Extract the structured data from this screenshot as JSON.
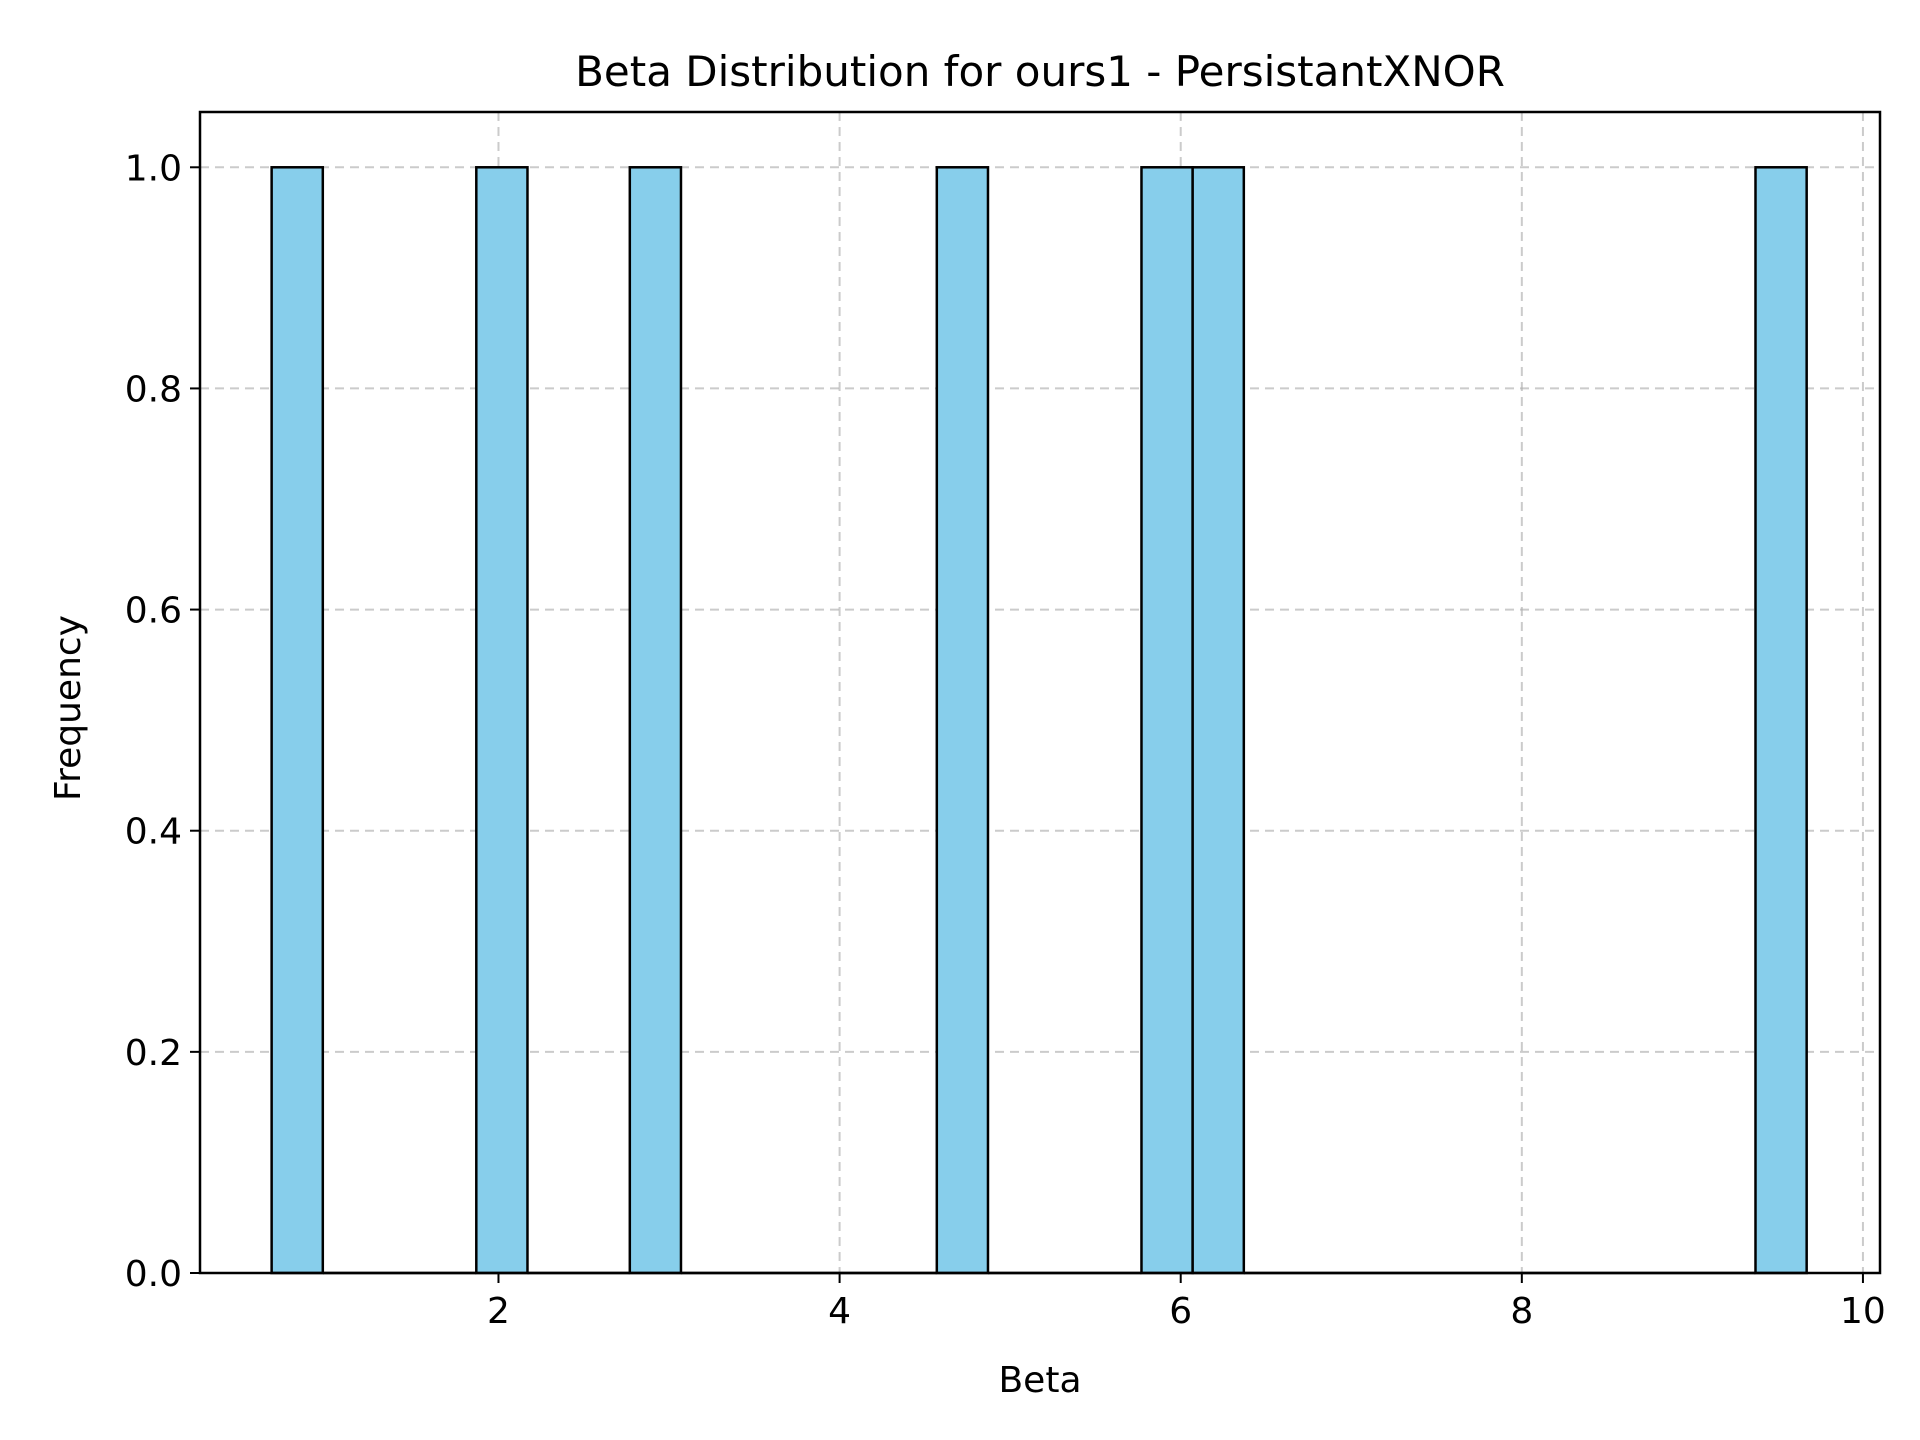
{
  "chart_data": {
    "type": "bar",
    "subtype": "histogram",
    "title": "Beta Distribution for ours1 - PersistantXNOR",
    "xlabel": "Beta",
    "ylabel": "Frequency",
    "xlim": [
      0.25,
      10.1
    ],
    "ylim": [
      0,
      1.05
    ],
    "xticks": [
      2,
      4,
      6,
      8,
      10
    ],
    "xtick_labels": [
      "2",
      "4",
      "6",
      "8",
      "10"
    ],
    "yticks": [
      0,
      0.2,
      0.4,
      0.6,
      0.8,
      1.0
    ],
    "ytick_labels": [
      "0.0",
      "0.2",
      "0.4",
      "0.6",
      "0.8",
      "1.0"
    ],
    "grid": true,
    "bar_color": "#87ceeb",
    "edge_color": "#000000",
    "bins": [
      {
        "x0": 0.67,
        "x1": 0.97,
        "count": 1
      },
      {
        "x0": 0.97,
        "x1": 1.87,
        "count": 0
      },
      {
        "x0": 1.87,
        "x1": 2.17,
        "count": 1
      },
      {
        "x0": 2.17,
        "x1": 2.77,
        "count": 0
      },
      {
        "x0": 2.77,
        "x1": 3.07,
        "count": 1
      },
      {
        "x0": 3.07,
        "x1": 4.57,
        "count": 0
      },
      {
        "x0": 4.57,
        "x1": 4.87,
        "count": 1
      },
      {
        "x0": 4.87,
        "x1": 5.77,
        "count": 0
      },
      {
        "x0": 5.77,
        "x1": 6.07,
        "count": 1
      },
      {
        "x0": 6.07,
        "x1": 6.37,
        "count": 1
      },
      {
        "x0": 6.37,
        "x1": 9.37,
        "count": 0
      },
      {
        "x0": 9.37,
        "x1": 9.67,
        "count": 1
      }
    ]
  }
}
